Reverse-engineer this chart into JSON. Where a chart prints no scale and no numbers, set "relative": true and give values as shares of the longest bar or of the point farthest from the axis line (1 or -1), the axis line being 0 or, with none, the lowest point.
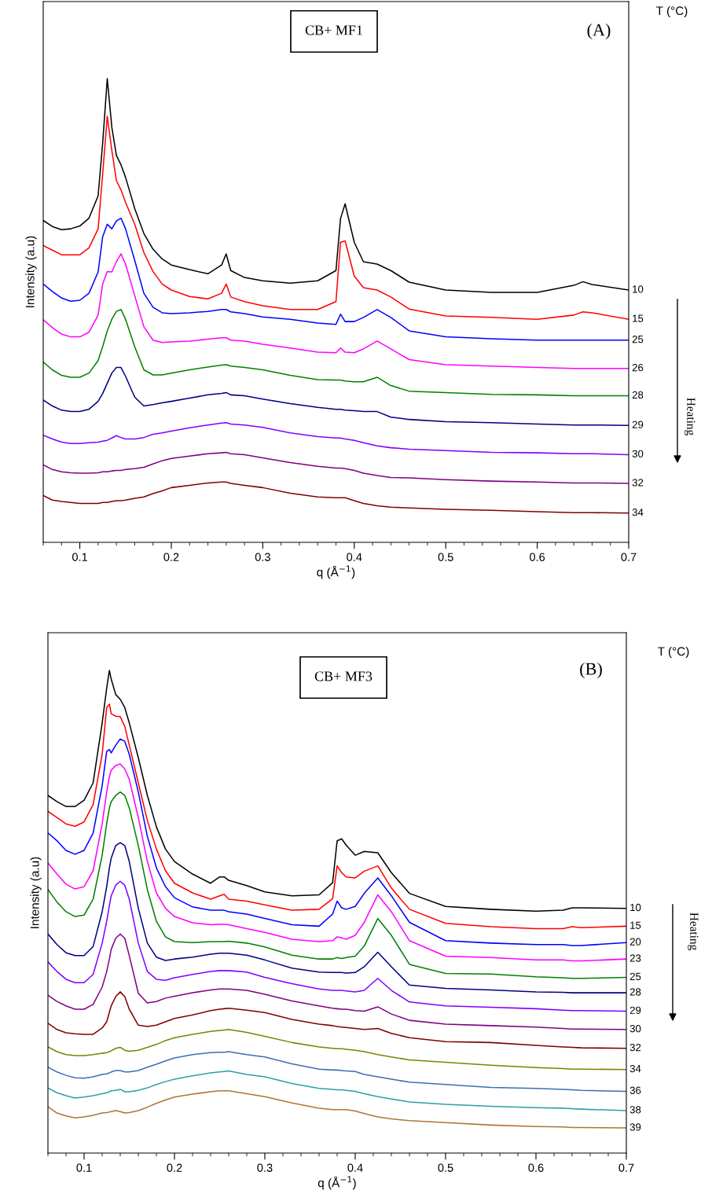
{
  "chart_data": [
    {
      "type": "line",
      "relative": true,
      "tick_labels": "x",
      "xlabel": "q (Å$^{−1}$)",
      "ylabel": "Intensity (a.u)",
      "xlim": [
        0.06,
        0.7
      ],
      "xticks": [
        0.1,
        0.2,
        0.3,
        0.4,
        0.5,
        0.6,
        0.7
      ],
      "annotations": [
        "T (°C)",
        "CB+ MF1",
        "(A)",
        "Heating"
      ],
      "x": [
        0.06,
        0.07,
        0.08,
        0.09,
        0.1,
        0.11,
        0.12,
        0.125,
        0.13,
        0.135,
        0.14,
        0.145,
        0.15,
        0.16,
        0.17,
        0.18,
        0.19,
        0.2,
        0.22,
        0.24,
        0.255,
        0.26,
        0.265,
        0.28,
        0.3,
        0.33,
        0.36,
        0.38,
        0.385,
        0.39,
        0.4,
        0.41,
        0.425,
        0.44,
        0.46,
        0.5,
        0.55,
        0.6,
        0.64,
        0.65,
        0.66,
        0.7
      ],
      "series": [
        {
          "name": "10",
          "color": "#000000",
          "values": [
            0.694,
            0.681,
            0.674,
            0.676,
            0.682,
            0.699,
            0.747,
            0.861,
            1.0,
            0.895,
            0.834,
            0.814,
            0.787,
            0.72,
            0.666,
            0.632,
            0.611,
            0.598,
            0.588,
            0.579,
            0.598,
            0.622,
            0.586,
            0.571,
            0.564,
            0.559,
            0.564,
            0.586,
            0.698,
            0.73,
            0.647,
            0.605,
            0.6,
            0.586,
            0.561,
            0.544,
            0.539,
            0.539,
            0.554,
            0.562,
            0.556,
            0.544
          ]
        },
        {
          "name": "15",
          "color": "#ff0000",
          "values": [
            0.64,
            0.63,
            0.62,
            0.62,
            0.62,
            0.635,
            0.676,
            0.794,
            0.919,
            0.845,
            0.78,
            0.76,
            0.733,
            0.686,
            0.625,
            0.584,
            0.557,
            0.544,
            0.53,
            0.525,
            0.537,
            0.557,
            0.529,
            0.519,
            0.51,
            0.502,
            0.502,
            0.519,
            0.647,
            0.65,
            0.574,
            0.549,
            0.544,
            0.529,
            0.503,
            0.488,
            0.485,
            0.481,
            0.49,
            0.497,
            0.495,
            0.481
          ]
        },
        {
          "name": "25",
          "color": "#0000ff",
          "values": [
            0.557,
            0.541,
            0.527,
            0.52,
            0.522,
            0.537,
            0.583,
            0.659,
            0.686,
            0.676,
            0.693,
            0.699,
            0.676,
            0.608,
            0.537,
            0.507,
            0.495,
            0.493,
            0.495,
            0.498,
            0.502,
            0.502,
            0.497,
            0.493,
            0.486,
            0.481,
            0.473,
            0.47,
            0.492,
            0.476,
            0.476,
            0.485,
            0.502,
            0.485,
            0.456,
            0.443,
            0.439,
            0.436,
            0.436,
            0.436,
            0.436,
            0.436
          ]
        },
        {
          "name": "26",
          "color": "#ff00ff",
          "values": [
            0.48,
            0.463,
            0.449,
            0.443,
            0.443,
            0.453,
            0.49,
            0.557,
            0.584,
            0.583,
            0.605,
            0.622,
            0.6,
            0.532,
            0.465,
            0.436,
            0.431,
            0.432,
            0.434,
            0.438,
            0.441,
            0.441,
            0.436,
            0.434,
            0.427,
            0.419,
            0.41,
            0.409,
            0.419,
            0.41,
            0.409,
            0.417,
            0.434,
            0.417,
            0.394,
            0.383,
            0.38,
            0.377,
            0.375,
            0.375,
            0.375,
            0.375
          ]
        },
        {
          "name": "28",
          "color": "#008000",
          "values": [
            0.389,
            0.372,
            0.36,
            0.356,
            0.356,
            0.365,
            0.392,
            0.422,
            0.456,
            0.481,
            0.498,
            0.502,
            0.481,
            0.422,
            0.372,
            0.361,
            0.361,
            0.365,
            0.372,
            0.378,
            0.382,
            0.383,
            0.38,
            0.377,
            0.372,
            0.36,
            0.351,
            0.35,
            0.35,
            0.348,
            0.346,
            0.346,
            0.356,
            0.338,
            0.326,
            0.323,
            0.319,
            0.318,
            0.316,
            0.316,
            0.316,
            0.316
          ]
        },
        {
          "name": "29",
          "color": "#000080",
          "values": [
            0.307,
            0.294,
            0.285,
            0.282,
            0.282,
            0.287,
            0.304,
            0.321,
            0.343,
            0.365,
            0.377,
            0.377,
            0.358,
            0.313,
            0.294,
            0.297,
            0.301,
            0.304,
            0.311,
            0.318,
            0.321,
            0.323,
            0.318,
            0.316,
            0.309,
            0.299,
            0.291,
            0.287,
            0.287,
            0.285,
            0.284,
            0.282,
            0.282,
            0.27,
            0.265,
            0.26,
            0.258,
            0.255,
            0.253,
            0.253,
            0.253,
            0.252
          ]
        },
        {
          "name": "30",
          "color": "#8000ff",
          "values": [
            0.231,
            0.223,
            0.216,
            0.213,
            0.213,
            0.215,
            0.216,
            0.218,
            0.22,
            0.225,
            0.23,
            0.226,
            0.223,
            0.223,
            0.226,
            0.233,
            0.236,
            0.24,
            0.247,
            0.253,
            0.257,
            0.258,
            0.255,
            0.253,
            0.248,
            0.236,
            0.228,
            0.225,
            0.225,
            0.223,
            0.22,
            0.215,
            0.208,
            0.204,
            0.201,
            0.198,
            0.194,
            0.193,
            0.191,
            0.191,
            0.191,
            0.189
          ]
        },
        {
          "name": "32",
          "color": "#800080",
          "values": [
            0.167,
            0.157,
            0.152,
            0.15,
            0.149,
            0.149,
            0.15,
            0.152,
            0.152,
            0.154,
            0.155,
            0.155,
            0.157,
            0.159,
            0.162,
            0.169,
            0.176,
            0.181,
            0.186,
            0.191,
            0.193,
            0.194,
            0.191,
            0.189,
            0.182,
            0.172,
            0.164,
            0.16,
            0.16,
            0.159,
            0.155,
            0.149,
            0.144,
            0.14,
            0.139,
            0.135,
            0.132,
            0.13,
            0.128,
            0.128,
            0.128,
            0.127
          ]
        },
        {
          "name": "34",
          "color": "#800000",
          "values": [
            0.101,
            0.091,
            0.088,
            0.086,
            0.084,
            0.084,
            0.084,
            0.086,
            0.086,
            0.088,
            0.09,
            0.09,
            0.091,
            0.095,
            0.098,
            0.105,
            0.111,
            0.118,
            0.123,
            0.128,
            0.13,
            0.13,
            0.127,
            0.123,
            0.118,
            0.106,
            0.098,
            0.096,
            0.096,
            0.096,
            0.09,
            0.084,
            0.079,
            0.076,
            0.074,
            0.071,
            0.069,
            0.066,
            0.064,
            0.064,
            0.064,
            0.063
          ]
        }
      ]
    },
    {
      "type": "line",
      "relative": true,
      "tick_labels": "x",
      "xlabel": "q (Å$^{−1}$)",
      "ylabel": "Intensity (a.u)",
      "xlim": [
        0.06,
        0.7
      ],
      "xticks": [
        0.1,
        0.2,
        0.3,
        0.4,
        0.5,
        0.6,
        0.7
      ],
      "annotations": [
        "T (°C)",
        "CB+ MF3",
        "(B)",
        "Heating"
      ],
      "x": [
        0.06,
        0.07,
        0.08,
        0.09,
        0.1,
        0.11,
        0.12,
        0.125,
        0.128,
        0.13,
        0.135,
        0.14,
        0.145,
        0.15,
        0.16,
        0.17,
        0.18,
        0.19,
        0.2,
        0.22,
        0.24,
        0.25,
        0.255,
        0.26,
        0.28,
        0.3,
        0.33,
        0.36,
        0.375,
        0.38,
        0.385,
        0.39,
        0.4,
        0.41,
        0.425,
        0.44,
        0.46,
        0.5,
        0.55,
        0.6,
        0.63,
        0.64,
        0.65,
        0.7
      ],
      "series": [
        {
          "name": "10",
          "color": "#000000",
          "values": [
            0.741,
            0.728,
            0.718,
            0.718,
            0.731,
            0.767,
            0.891,
            0.963,
            1.0,
            0.982,
            0.95,
            0.94,
            0.923,
            0.891,
            0.819,
            0.741,
            0.676,
            0.63,
            0.604,
            0.578,
            0.559,
            0.572,
            0.572,
            0.565,
            0.554,
            0.541,
            0.533,
            0.535,
            0.56,
            0.647,
            0.651,
            0.638,
            0.617,
            0.625,
            0.622,
            0.581,
            0.538,
            0.511,
            0.505,
            0.501,
            0.503,
            0.508,
            0.508,
            0.507
          ]
        },
        {
          "name": "15",
          "color": "#ff0000",
          "values": [
            0.708,
            0.695,
            0.682,
            0.677,
            0.686,
            0.722,
            0.826,
            0.923,
            0.93,
            0.91,
            0.905,
            0.904,
            0.884,
            0.845,
            0.767,
            0.689,
            0.63,
            0.585,
            0.559,
            0.539,
            0.526,
            0.533,
            0.536,
            0.526,
            0.522,
            0.514,
            0.503,
            0.505,
            0.527,
            0.595,
            0.581,
            0.572,
            0.57,
            0.584,
            0.595,
            0.549,
            0.505,
            0.476,
            0.469,
            0.465,
            0.465,
            0.469,
            0.467,
            0.47
          ]
        },
        {
          "name": "20",
          "color": "#0000ff",
          "values": [
            0.663,
            0.647,
            0.627,
            0.619,
            0.627,
            0.663,
            0.761,
            0.832,
            0.836,
            0.829,
            0.845,
            0.858,
            0.853,
            0.826,
            0.748,
            0.656,
            0.591,
            0.552,
            0.529,
            0.51,
            0.503,
            0.503,
            0.503,
            0.5,
            0.495,
            0.486,
            0.473,
            0.47,
            0.495,
            0.522,
            0.508,
            0.505,
            0.511,
            0.538,
            0.57,
            0.533,
            0.478,
            0.44,
            0.435,
            0.432,
            0.432,
            0.43,
            0.43,
            0.436
          ]
        },
        {
          "name": "23",
          "color": "#ff00ff",
          "values": [
            0.601,
            0.578,
            0.557,
            0.547,
            0.552,
            0.585,
            0.682,
            0.748,
            0.78,
            0.793,
            0.803,
            0.806,
            0.796,
            0.774,
            0.695,
            0.604,
            0.539,
            0.507,
            0.49,
            0.477,
            0.473,
            0.474,
            0.474,
            0.473,
            0.465,
            0.457,
            0.443,
            0.438,
            0.44,
            0.448,
            0.446,
            0.443,
            0.451,
            0.478,
            0.535,
            0.5,
            0.44,
            0.408,
            0.405,
            0.4,
            0.4,
            0.398,
            0.398,
            0.402
          ]
        },
        {
          "name": "25",
          "color": "#008000",
          "values": [
            0.546,
            0.52,
            0.5,
            0.49,
            0.493,
            0.526,
            0.617,
            0.682,
            0.715,
            0.728,
            0.741,
            0.748,
            0.741,
            0.715,
            0.637,
            0.546,
            0.48,
            0.448,
            0.438,
            0.436,
            0.438,
            0.438,
            0.438,
            0.439,
            0.435,
            0.427,
            0.41,
            0.402,
            0.402,
            0.405,
            0.403,
            0.405,
            0.408,
            0.429,
            0.486,
            0.451,
            0.391,
            0.372,
            0.371,
            0.365,
            0.363,
            0.362,
            0.362,
            0.364
          ]
        },
        {
          "name": "28",
          "color": "#000080",
          "values": [
            0.454,
            0.432,
            0.415,
            0.409,
            0.409,
            0.428,
            0.5,
            0.552,
            0.591,
            0.611,
            0.637,
            0.643,
            0.637,
            0.604,
            0.507,
            0.435,
            0.406,
            0.399,
            0.402,
            0.406,
            0.412,
            0.414,
            0.414,
            0.414,
            0.41,
            0.4,
            0.383,
            0.375,
            0.374,
            0.374,
            0.374,
            0.373,
            0.374,
            0.386,
            0.416,
            0.386,
            0.348,
            0.341,
            0.338,
            0.334,
            0.333,
            0.332,
            0.332,
            0.332
          ]
        },
        {
          "name": "29",
          "color": "#8000ff",
          "values": [
            0.396,
            0.376,
            0.36,
            0.353,
            0.353,
            0.37,
            0.435,
            0.48,
            0.513,
            0.533,
            0.555,
            0.563,
            0.555,
            0.526,
            0.435,
            0.376,
            0.36,
            0.358,
            0.363,
            0.37,
            0.376,
            0.378,
            0.378,
            0.378,
            0.375,
            0.364,
            0.351,
            0.34,
            0.337,
            0.337,
            0.337,
            0.336,
            0.334,
            0.337,
            0.362,
            0.337,
            0.313,
            0.305,
            0.302,
            0.299,
            0.296,
            0.295,
            0.295,
            0.294
          ]
        },
        {
          "name": "30",
          "color": "#800080",
          "values": [
            0.327,
            0.314,
            0.305,
            0.298,
            0.298,
            0.308,
            0.344,
            0.376,
            0.402,
            0.422,
            0.445,
            0.454,
            0.445,
            0.409,
            0.331,
            0.311,
            0.314,
            0.321,
            0.325,
            0.332,
            0.338,
            0.34,
            0.34,
            0.34,
            0.337,
            0.329,
            0.315,
            0.305,
            0.3,
            0.299,
            0.298,
            0.298,
            0.295,
            0.294,
            0.303,
            0.288,
            0.275,
            0.267,
            0.264,
            0.261,
            0.258,
            0.257,
            0.257,
            0.256
          ]
        },
        {
          "name": "32",
          "color": "#800000",
          "values": [
            0.269,
            0.256,
            0.249,
            0.247,
            0.246,
            0.246,
            0.259,
            0.272,
            0.292,
            0.305,
            0.324,
            0.334,
            0.324,
            0.298,
            0.265,
            0.262,
            0.265,
            0.272,
            0.279,
            0.286,
            0.295,
            0.298,
            0.299,
            0.3,
            0.296,
            0.291,
            0.277,
            0.267,
            0.264,
            0.262,
            0.261,
            0.26,
            0.258,
            0.256,
            0.258,
            0.248,
            0.239,
            0.231,
            0.229,
            0.223,
            0.22,
            0.219,
            0.218,
            0.217
          ]
        },
        {
          "name": "34",
          "color": "#808000",
          "values": [
            0.22,
            0.21,
            0.204,
            0.202,
            0.202,
            0.204,
            0.207,
            0.208,
            0.21,
            0.212,
            0.217,
            0.219,
            0.213,
            0.211,
            0.213,
            0.219,
            0.225,
            0.233,
            0.239,
            0.246,
            0.252,
            0.254,
            0.255,
            0.256,
            0.25,
            0.242,
            0.229,
            0.22,
            0.217,
            0.216,
            0.216,
            0.215,
            0.213,
            0.21,
            0.204,
            0.199,
            0.193,
            0.188,
            0.182,
            0.177,
            0.175,
            0.174,
            0.174,
            0.173
          ]
        },
        {
          "name": "36",
          "color": "#3a6fb0",
          "values": [
            0.178,
            0.168,
            0.161,
            0.156,
            0.155,
            0.158,
            0.163,
            0.164,
            0.166,
            0.168,
            0.171,
            0.171,
            0.168,
            0.168,
            0.171,
            0.178,
            0.184,
            0.191,
            0.197,
            0.204,
            0.208,
            0.209,
            0.209,
            0.21,
            0.204,
            0.199,
            0.185,
            0.174,
            0.172,
            0.172,
            0.171,
            0.17,
            0.169,
            0.163,
            0.158,
            0.153,
            0.147,
            0.142,
            0.136,
            0.134,
            0.132,
            0.131,
            0.13,
            0.128
          ]
        },
        {
          "name": "38",
          "color": "#2aa0a8",
          "values": [
            0.135,
            0.125,
            0.119,
            0.114,
            0.116,
            0.119,
            0.123,
            0.125,
            0.127,
            0.129,
            0.13,
            0.132,
            0.127,
            0.127,
            0.13,
            0.135,
            0.142,
            0.148,
            0.153,
            0.16,
            0.166,
            0.168,
            0.169,
            0.17,
            0.163,
            0.158,
            0.144,
            0.134,
            0.132,
            0.131,
            0.131,
            0.13,
            0.128,
            0.123,
            0.117,
            0.112,
            0.106,
            0.101,
            0.097,
            0.094,
            0.093,
            0.092,
            0.091,
            0.088
          ]
        },
        {
          "name": "39",
          "color": "#b07434",
          "values": [
            0.096,
            0.083,
            0.077,
            0.073,
            0.075,
            0.078,
            0.083,
            0.084,
            0.085,
            0.086,
            0.088,
            0.086,
            0.083,
            0.084,
            0.088,
            0.095,
            0.103,
            0.11,
            0.116,
            0.122,
            0.127,
            0.129,
            0.129,
            0.129,
            0.123,
            0.117,
            0.104,
            0.093,
            0.09,
            0.09,
            0.09,
            0.09,
            0.087,
            0.082,
            0.075,
            0.071,
            0.067,
            0.063,
            0.058,
            0.055,
            0.054,
            0.053,
            0.053,
            0.052
          ]
        }
      ]
    }
  ]
}
